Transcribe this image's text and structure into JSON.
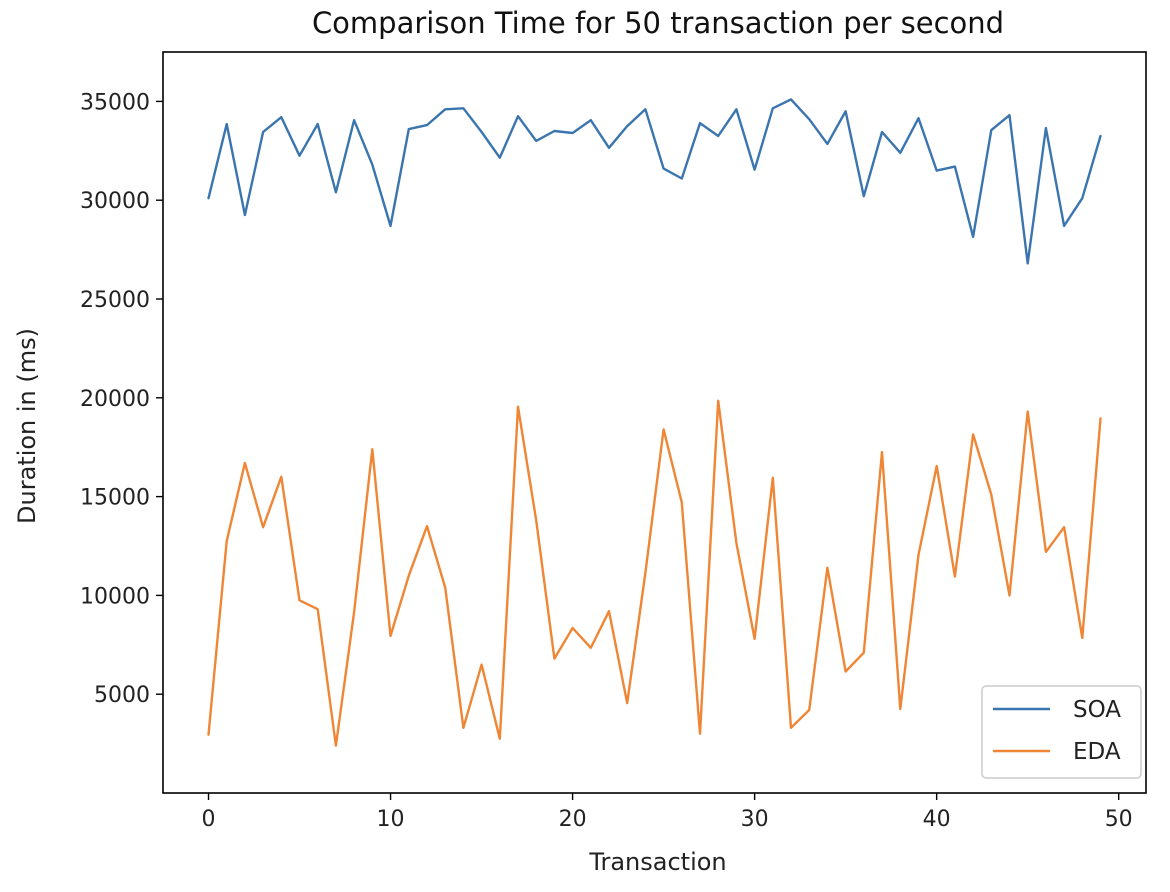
{
  "chart_data": {
    "type": "line",
    "title": "Comparison Time for 50 transaction per second",
    "xlabel": "Transaction",
    "ylabel": "Duration in (ms)",
    "xlim": [
      -2.5,
      51.5
    ],
    "ylim": [
      0,
      37500
    ],
    "xticks": [
      0,
      10,
      20,
      30,
      40,
      50
    ],
    "yticks": [
      5000,
      10000,
      15000,
      20000,
      25000,
      30000,
      35000
    ],
    "grid": false,
    "legend_position": "lower-right",
    "x": [
      0,
      1,
      2,
      3,
      4,
      5,
      6,
      7,
      8,
      9,
      10,
      11,
      12,
      13,
      14,
      15,
      16,
      17,
      18,
      19,
      20,
      21,
      22,
      23,
      24,
      25,
      26,
      27,
      28,
      29,
      30,
      31,
      32,
      33,
      34,
      35,
      36,
      37,
      38,
      39,
      40,
      41,
      42,
      43,
      44,
      45,
      46,
      47,
      48,
      49
    ],
    "series": [
      {
        "name": "SOA",
        "color": "#3b75af",
        "values": [
          30100,
          33850,
          29250,
          33450,
          34200,
          32250,
          33850,
          30400,
          34050,
          31800,
          28700,
          33600,
          33800,
          34600,
          34650,
          33450,
          32150,
          34250,
          33000,
          33500,
          33400,
          34050,
          32650,
          33750,
          34600,
          31600,
          31100,
          33900,
          33250,
          34600,
          31550,
          34650,
          35100,
          34100,
          32850,
          34500,
          30200,
          33450,
          32400,
          34150,
          31500,
          31700,
          28150,
          33550,
          34300,
          26800,
          33650,
          28700,
          30100,
          33250
        ]
      },
      {
        "name": "EDA",
        "color": "#ef8636",
        "values": [
          2950,
          12750,
          16700,
          13450,
          16000,
          9750,
          9300,
          2400,
          9150,
          17400,
          7950,
          11000,
          13500,
          10400,
          3300,
          6500,
          2750,
          19550,
          13800,
          6800,
          8350,
          7350,
          9200,
          4550,
          11150,
          18400,
          14700,
          3000,
          19850,
          12650,
          7800,
          15950,
          3300,
          4200,
          11400,
          6150,
          7100,
          17250,
          4250,
          12050,
          16550,
          10950,
          18150,
          15100,
          10000,
          19300,
          12200,
          13450,
          7850,
          18950
        ]
      }
    ]
  }
}
